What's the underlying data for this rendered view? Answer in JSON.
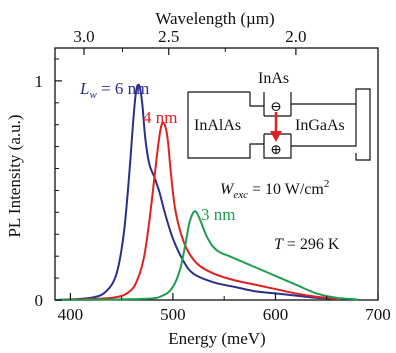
{
  "chart_data": {
    "type": "line",
    "xlabel": "Energy (meV)",
    "ylabel": "PL Intensity (a.u.)",
    "top_axis_label": "Wavelength (µm)",
    "xlim": [
      385,
      700
    ],
    "ylim": [
      0,
      1.15
    ],
    "x_ticks": [
      400,
      500,
      600,
      700
    ],
    "y_ticks": [
      {
        "value": 0,
        "label": "0"
      },
      {
        "value": 1,
        "label": "1"
      }
    ],
    "top_ticks": [
      {
        "value": 3.0,
        "label": "3.0"
      },
      {
        "value": 2.5,
        "label": "2.5"
      },
      {
        "value": 2.0,
        "label": "2.0"
      }
    ],
    "grid": false,
    "legend": "inline labels next to peaks",
    "series": [
      {
        "name": "L_w = 6 nm",
        "color": "#2b2f8c",
        "x": [
          385,
          420,
          435,
          445,
          452,
          457,
          461,
          464,
          467,
          470,
          473,
          477,
          482,
          487,
          492,
          500,
          510,
          520,
          540,
          560,
          580,
          600,
          620,
          640,
          660
        ],
        "y": [
          0,
          0.01,
          0.04,
          0.12,
          0.3,
          0.55,
          0.8,
          0.95,
          0.98,
          0.9,
          0.74,
          0.62,
          0.56,
          0.49,
          0.4,
          0.28,
          0.18,
          0.12,
          0.08,
          0.06,
          0.04,
          0.03,
          0.02,
          0.01,
          0.005
        ]
      },
      {
        "name": "4 nm",
        "color": "#e02020",
        "x": [
          385,
          440,
          458,
          466,
          472,
          477,
          482,
          486,
          489,
          492,
          495,
          498,
          502,
          508,
          515,
          525,
          540,
          560,
          580,
          600,
          620,
          640,
          660
        ],
        "y": [
          0,
          0.01,
          0.04,
          0.1,
          0.2,
          0.36,
          0.56,
          0.72,
          0.8,
          0.8,
          0.73,
          0.58,
          0.42,
          0.3,
          0.22,
          0.16,
          0.12,
          0.09,
          0.07,
          0.05,
          0.03,
          0.015,
          0.005
        ]
      },
      {
        "name": "3 nm",
        "color": "#1e9e4e",
        "x": [
          385,
          470,
          490,
          500,
          507,
          512,
          516,
          520,
          523,
          527,
          532,
          538,
          545,
          555,
          565,
          580,
          600,
          620,
          640,
          660,
          680
        ],
        "y": [
          0,
          0.005,
          0.02,
          0.06,
          0.14,
          0.25,
          0.35,
          0.4,
          0.4,
          0.36,
          0.3,
          0.25,
          0.22,
          0.2,
          0.18,
          0.15,
          0.11,
          0.07,
          0.03,
          0.01,
          0.003
        ]
      }
    ],
    "annotations": {
      "lw_label": "L",
      "lw_sub": "w",
      "lw_rest": " = 6 nm",
      "label_4nm": "4 nm",
      "label_3nm": "3 nm",
      "wexc_w": "W",
      "wexc_sub": "exc",
      "wexc_value": " = 10 W/cm",
      "wexc_sup": "2",
      "temp_t": "T",
      "temp_rest": " = 296 K"
    },
    "inset": {
      "left_label": "InAlAs",
      "middle_label": "InAs",
      "right_label": "InGaAs",
      "electron_symbol": "⊖",
      "hole_symbol": "⊕",
      "arrow_color": "#e02020"
    }
  }
}
